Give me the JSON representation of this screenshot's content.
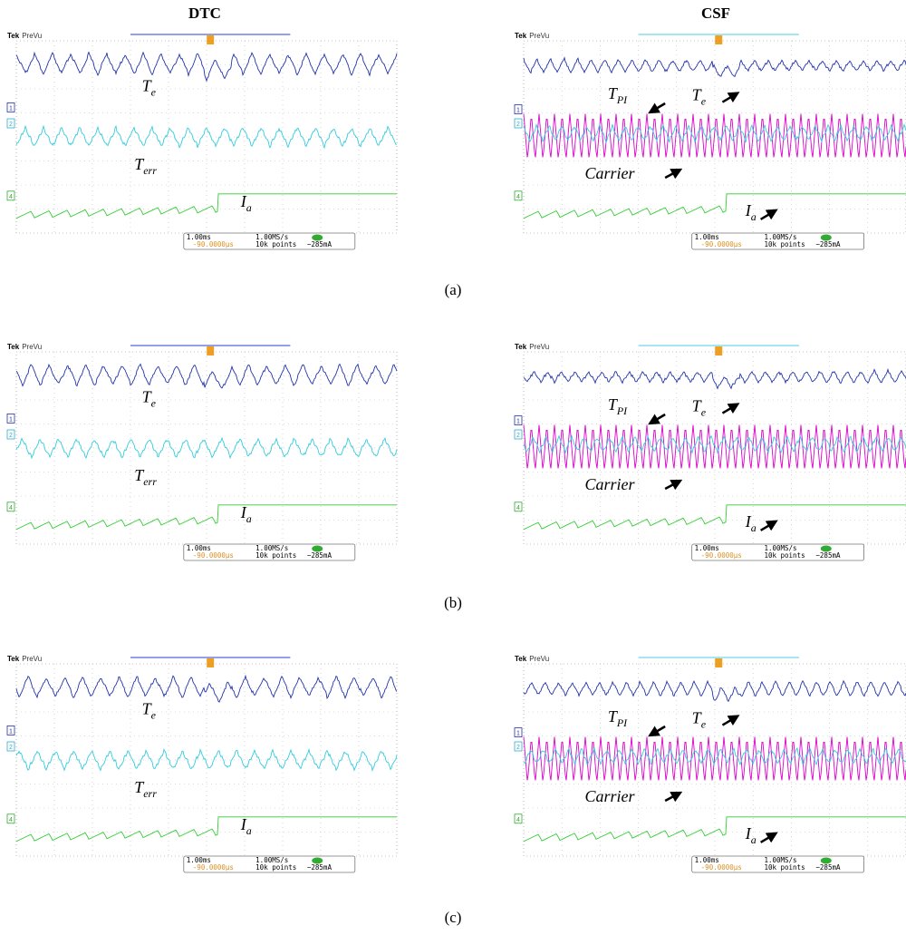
{
  "columns": [
    "DTC",
    "CSF"
  ],
  "panels": [
    {
      "label": "(a)"
    },
    {
      "label": "(b)"
    },
    {
      "label": "(c)"
    }
  ],
  "scope": {
    "brand": "Tek",
    "mode": "PreVu",
    "timebase": "1.00ms",
    "sample_rate": "1.00MS/s",
    "trigger_position": "-90.0000µs",
    "record_length": "10k points",
    "trigger_level": "−285mA",
    "channels": [
      "1",
      "2",
      "4"
    ]
  },
  "signals": {
    "torque": {
      "main": "T",
      "sub": "e"
    },
    "torque_error": {
      "main": "T",
      "sub": "err"
    },
    "current": {
      "main": "I",
      "sub": "a"
    },
    "pi_output": {
      "main": "T",
      "sub": "PI"
    },
    "carrier": "Carrier"
  }
}
